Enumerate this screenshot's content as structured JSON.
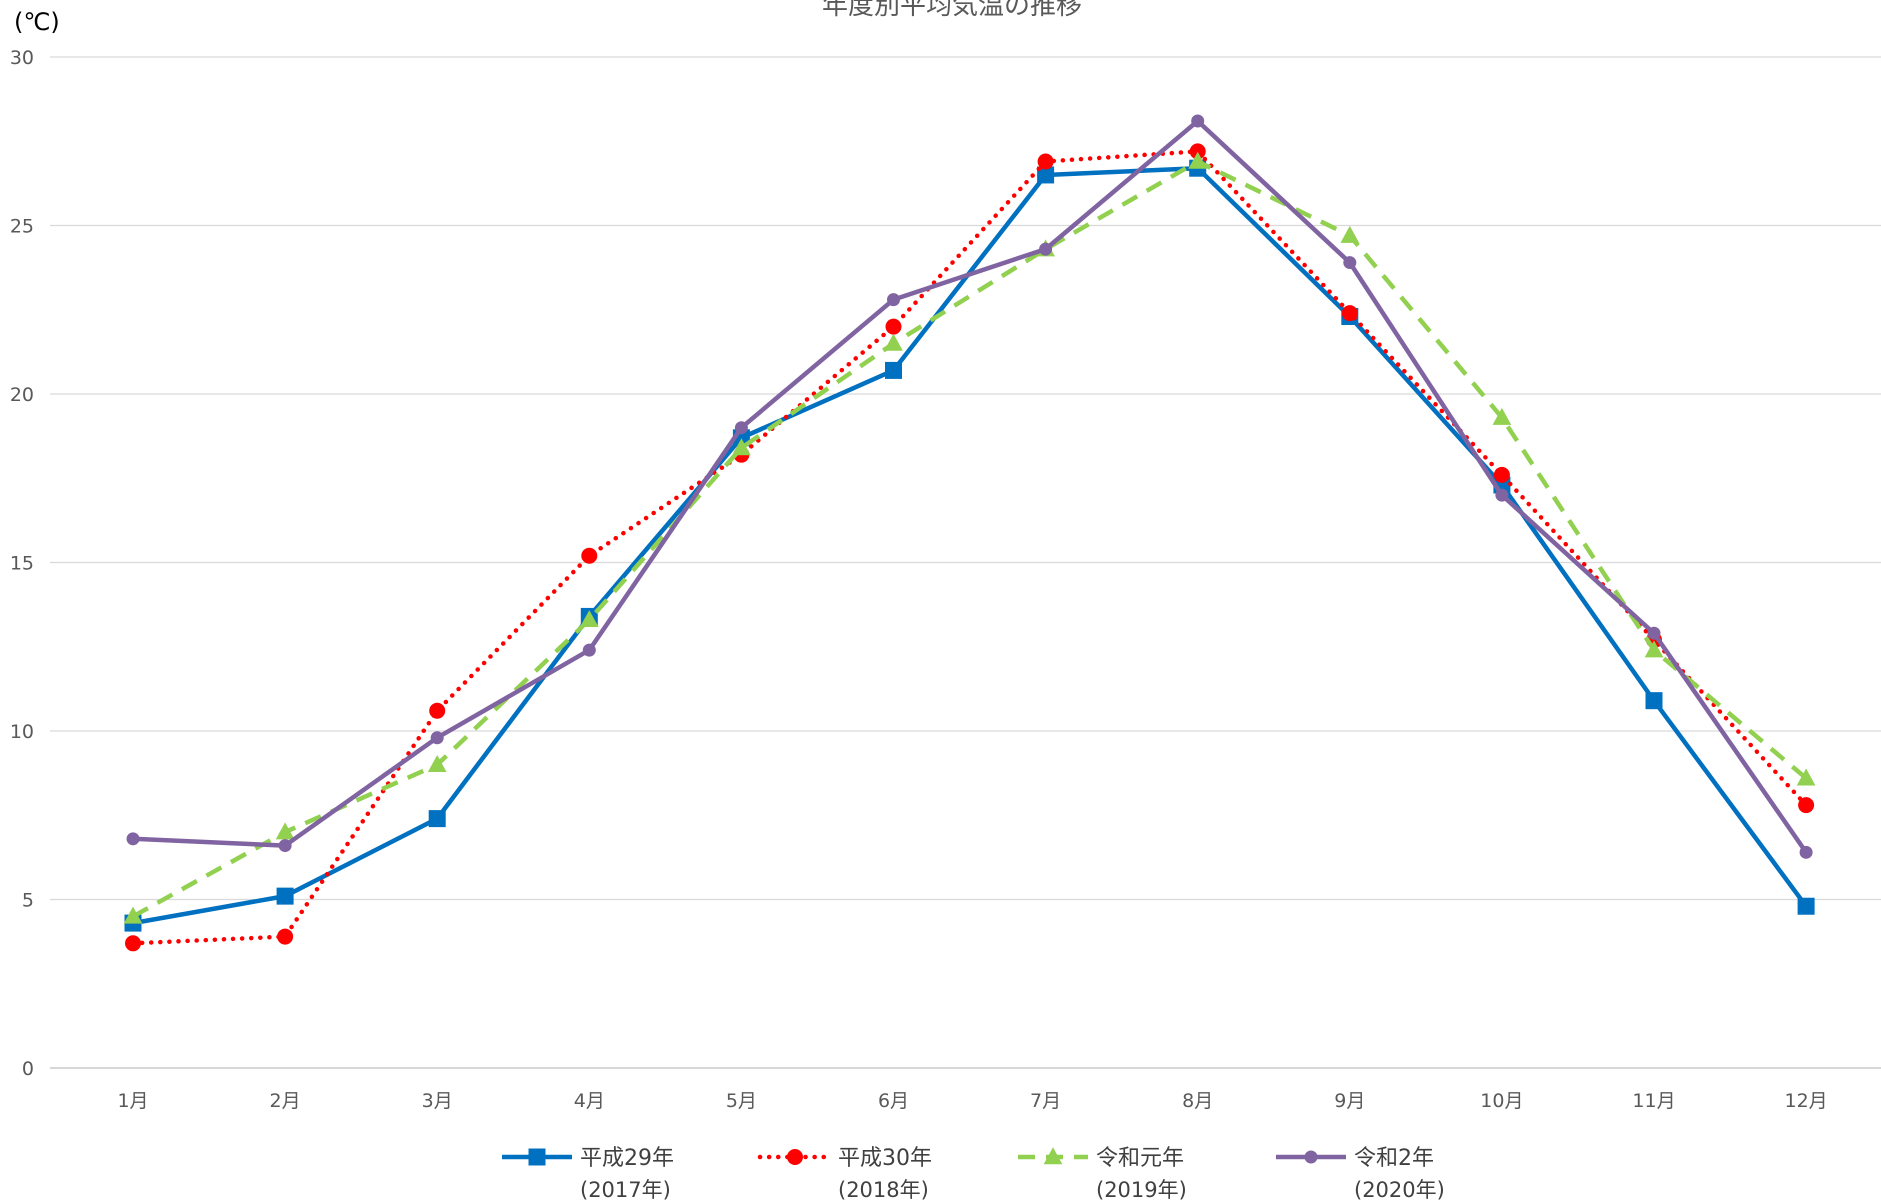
{
  "chart_data": {
    "type": "line",
    "title": "年度別平均気温の推移",
    "ylabel": "(℃)",
    "ylim": [
      0,
      30
    ],
    "yticks": [
      0,
      5,
      10,
      15,
      20,
      25,
      30
    ],
    "grid": true,
    "legend": "bottom",
    "categories": [
      "1月",
      "2月",
      "3月",
      "4月",
      "5月",
      "6月",
      "7月",
      "8月",
      "9月",
      "10月",
      "11月",
      "12月"
    ],
    "series": [
      {
        "name": "平成29年",
        "sub": "(2017年)",
        "color": "#0070C0",
        "dash": "solid",
        "marker": "square",
        "values": [
          4.3,
          5.1,
          7.4,
          13.4,
          18.7,
          20.7,
          26.5,
          26.7,
          22.3,
          17.3,
          10.9,
          4.8
        ]
      },
      {
        "name": "平成30年",
        "sub": "(2018年)",
        "color": "#FF0000",
        "dash": "dot",
        "marker": "circle",
        "values": [
          3.7,
          3.9,
          10.6,
          15.2,
          18.2,
          22.0,
          26.9,
          27.2,
          22.4,
          17.6,
          12.7,
          7.8
        ]
      },
      {
        "name": "令和元年",
        "sub": "(2019年)",
        "color": "#92D050",
        "dash": "dash",
        "marker": "triangle",
        "values": [
          4.5,
          7.0,
          9.0,
          13.3,
          18.4,
          21.5,
          24.3,
          26.9,
          24.7,
          19.3,
          12.4,
          8.6
        ]
      },
      {
        "name": "令和2年",
        "sub": "(2020年)",
        "color": "#8064A2",
        "dash": "solid",
        "marker": "circle",
        "values": [
          6.8,
          6.6,
          9.8,
          12.4,
          19.0,
          22.8,
          24.3,
          28.1,
          23.9,
          17.0,
          12.9,
          6.4
        ]
      }
    ]
  }
}
